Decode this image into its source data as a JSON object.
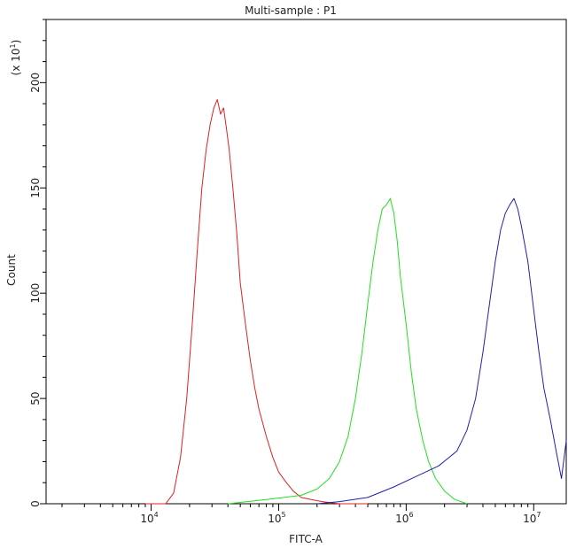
{
  "chart_data": {
    "type": "line",
    "title": "Multi-sample : P1",
    "xlabel": "FITC-A",
    "ylabel": "Count",
    "y_multiplier": "(x 10",
    "y_multiplier_exp": "1",
    "y_multiplier_close": ")",
    "x_scale": "log",
    "xlim": [
      1500,
      18000000
    ],
    "ylim": [
      0,
      230
    ],
    "grid": false,
    "legend": "none",
    "x_ticks": [
      {
        "base": "10",
        "exp": "4",
        "value": 10000
      },
      {
        "base": "10",
        "exp": "5",
        "value": 100000
      },
      {
        "base": "10",
        "exp": "6",
        "value": 1000000
      },
      {
        "base": "10",
        "exp": "7",
        "value": 10000000
      }
    ],
    "y_ticks": [
      "0",
      "50",
      "100",
      "150",
      "200"
    ],
    "series": [
      {
        "color": "#e02020",
        "x": [
          9000,
          13000,
          15000,
          17000,
          19000,
          21000,
          23000,
          25000,
          27000,
          29000,
          31000,
          33000,
          35000,
          37000,
          39000,
          41000,
          44000,
          47000,
          50000,
          55000,
          60000,
          65000,
          70000,
          80000,
          90000,
          100000,
          115000,
          130000,
          150000,
          180000,
          220000,
          300000,
          500000
        ],
        "y": [
          0,
          0,
          5,
          22,
          50,
          85,
          120,
          150,
          168,
          180,
          188,
          192,
          185,
          188,
          178,
          168,
          148,
          128,
          105,
          85,
          68,
          55,
          45,
          32,
          22,
          15,
          10,
          6,
          3,
          2,
          1,
          0,
          0
        ]
      },
      {
        "color": "#20e020",
        "x": [
          40000,
          80000,
          150000,
          200000,
          250000,
          300000,
          350000,
          400000,
          450000,
          500000,
          550000,
          600000,
          650000,
          700000,
          750000,
          800000,
          850000,
          900000,
          1000000,
          1100000,
          1200000,
          1350000,
          1500000,
          1700000,
          2000000,
          2400000,
          3000000
        ],
        "y": [
          0,
          2,
          4,
          7,
          12,
          20,
          32,
          50,
          72,
          95,
          115,
          130,
          140,
          142,
          145,
          138,
          125,
          108,
          85,
          62,
          45,
          30,
          20,
          12,
          6,
          2,
          0
        ]
      },
      {
        "color": "#2020b0",
        "x": [
          200000,
          300000,
          500000,
          800000,
          1200000,
          1800000,
          2500000,
          3000000,
          3500000,
          4000000,
          4500000,
          5000000,
          5500000,
          6000000,
          6500000,
          7000000,
          7500000,
          8000000,
          9000000,
          10000000,
          11000000,
          12000000,
          13500000,
          15000000,
          16500000,
          18000000
        ],
        "y": [
          0,
          1,
          3,
          8,
          13,
          18,
          25,
          35,
          50,
          72,
          95,
          115,
          130,
          138,
          142,
          145,
          140,
          132,
          115,
          92,
          72,
          55,
          40,
          25,
          12,
          30
        ]
      }
    ]
  }
}
